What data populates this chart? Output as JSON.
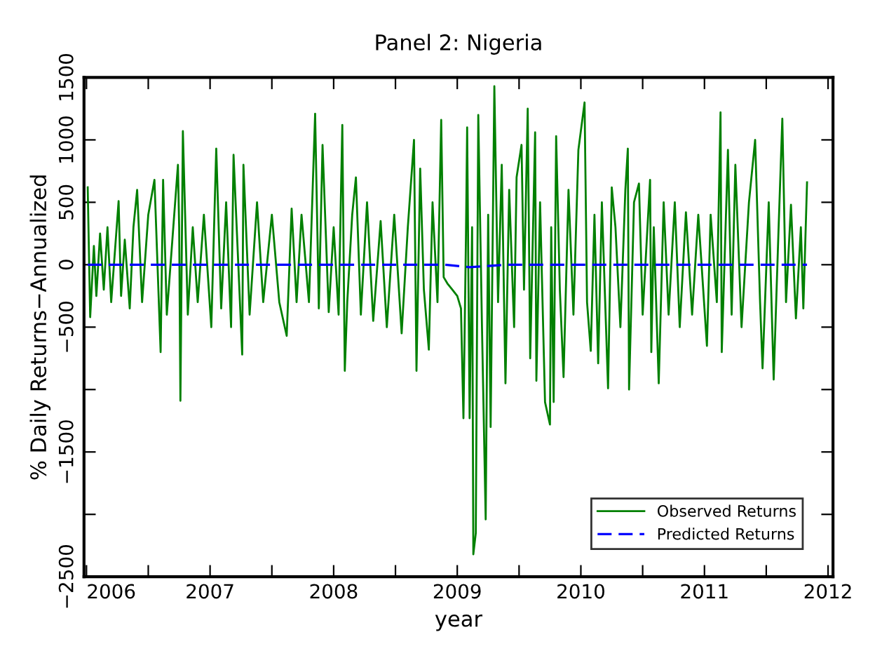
{
  "chart_data": {
    "type": "line",
    "title": "Panel 2: Nigeria",
    "xlabel": "year",
    "ylabel": "% Daily Returns−Annualized",
    "series": [
      {
        "name": "Observed Returns",
        "color": "#008000",
        "line_style": "solid",
        "x": [
          2006.01,
          2006.03,
          2006.06,
          2006.08,
          2006.11,
          2006.14,
          2006.17,
          2006.2,
          2006.26,
          2006.28,
          2006.31,
          2006.35,
          2006.38,
          2006.41,
          2006.45,
          2006.5,
          2006.55,
          2006.6,
          2006.62,
          2006.65,
          2006.74,
          2006.75,
          2006.76,
          2006.78,
          2006.82,
          2006.86,
          2006.9,
          2006.95,
          2007.01,
          2007.05,
          2007.09,
          2007.13,
          2007.17,
          2007.19,
          2007.26,
          2007.27,
          2007.32,
          2007.38,
          2007.43,
          2007.5,
          2007.56,
          2007.62,
          2007.66,
          2007.7,
          2007.74,
          2007.8,
          2007.85,
          2007.88,
          2007.91,
          2007.96,
          2008.0,
          2008.04,
          2008.07,
          2008.09,
          2008.11,
          2008.15,
          2008.18,
          2008.22,
          2008.27,
          2008.32,
          2008.38,
          2008.43,
          2008.49,
          2008.55,
          2008.6,
          2008.65,
          2008.67,
          2008.7,
          2008.73,
          2008.77,
          2008.8,
          2008.84,
          2008.87,
          2008.89,
          2008.92,
          2008.96,
          2009.0,
          2009.03,
          2009.05,
          2009.07,
          2009.08,
          2009.1,
          2009.12,
          2009.13,
          2009.15,
          2009.17,
          2009.2,
          2009.23,
          2009.25,
          2009.27,
          2009.3,
          2009.33,
          2009.36,
          2009.39,
          2009.42,
          2009.46,
          2009.48,
          2009.52,
          2009.54,
          2009.57,
          2009.59,
          2009.63,
          2009.64,
          2009.67,
          2009.71,
          2009.75,
          2009.76,
          2009.78,
          2009.8,
          2009.83,
          2009.86,
          2009.9,
          2009.94,
          2009.98,
          2010.03,
          2010.05,
          2010.08,
          2010.11,
          2010.14,
          2010.17,
          2010.22,
          2010.25,
          2010.28,
          2010.32,
          2010.36,
          2010.38,
          2010.39,
          2010.43,
          2010.47,
          2010.5,
          2010.56,
          2010.57,
          2010.59,
          2010.63,
          2010.67,
          2010.71,
          2010.76,
          2010.8,
          2010.85,
          2010.9,
          2010.95,
          2011.02,
          2011.05,
          2011.1,
          2011.13,
          2011.14,
          2011.19,
          2011.22,
          2011.25,
          2011.3,
          2011.36,
          2011.41,
          2011.45,
          2011.47,
          2011.52,
          2011.56,
          2011.6,
          2011.63,
          2011.66,
          2011.7,
          2011.74,
          2011.78,
          2011.8,
          2011.83
        ],
        "values": [
          620,
          -420,
          150,
          -250,
          250,
          -200,
          300,
          -300,
          510,
          -250,
          200,
          -350,
          300,
          600,
          -300,
          400,
          680,
          -700,
          680,
          -400,
          800,
          300,
          -1090,
          1070,
          -400,
          300,
          -300,
          400,
          -500,
          930,
          -350,
          500,
          -500,
          880,
          -720,
          800,
          -400,
          500,
          -300,
          400,
          -300,
          -570,
          450,
          -300,
          400,
          -300,
          1210,
          -350,
          960,
          -380,
          300,
          -400,
          1120,
          -850,
          -300,
          400,
          700,
          -400,
          500,
          -450,
          350,
          -500,
          400,
          -550,
          300,
          1000,
          -850,
          770,
          -200,
          -680,
          500,
          -300,
          1160,
          -100,
          -150,
          -200,
          -250,
          -350,
          -1230,
          200,
          1100,
          -1230,
          300,
          -2320,
          -2150,
          1200,
          -500,
          -2040,
          400,
          -1300,
          1430,
          -300,
          800,
          -950,
          600,
          -500,
          700,
          960,
          -200,
          1250,
          -750,
          1060,
          -930,
          500,
          -1100,
          -1280,
          300,
          -1100,
          1030,
          -200,
          -900,
          600,
          -400,
          920,
          1300,
          -300,
          -690,
          400,
          -790,
          500,
          -990,
          620,
          300,
          -500,
          600,
          930,
          -1000,
          500,
          650,
          -400,
          680,
          -700,
          300,
          -950,
          500,
          -400,
          500,
          -500,
          420,
          -400,
          400,
          -650,
          400,
          -300,
          1220,
          -700,
          920,
          -400,
          800,
          -500,
          500,
          1000,
          -300,
          -830,
          500,
          -920,
          300,
          1170,
          -300,
          480,
          -430,
          300,
          -350,
          660
        ]
      },
      {
        "name": "Predicted Returns",
        "color": "#0000ff",
        "line_style": "dashed",
        "x": [
          2006.01,
          2008.9,
          2009.1,
          2009.4,
          2011.83
        ],
        "values": [
          0,
          0,
          -20,
          0,
          0
        ]
      }
    ],
    "xlim": [
      2005.98,
      2012.04
    ],
    "xticks": [
      2006,
      {
        "value": 2006.5,
        "label": null
      },
      2007,
      {
        "value": 2007.5,
        "label": null
      },
      2008,
      {
        "value": 2008.5,
        "label": null
      },
      2009,
      {
        "value": 2009.5,
        "label": null
      },
      2010,
      {
        "value": 2010.5,
        "label": null
      },
      2011,
      {
        "value": 2011.5,
        "label": null
      },
      2012
    ],
    "ylim": [
      -2500,
      1500
    ],
    "yticks": [
      {
        "value": -2500,
        "label": "−2500"
      },
      {
        "value": -2000,
        "label": null
      },
      {
        "value": -1500,
        "label": "−1500"
      },
      {
        "value": -1000,
        "label": null
      },
      {
        "value": -500,
        "label": "−500"
      },
      0,
      500,
      1000,
      1500
    ],
    "grid": false,
    "legend": "bottom right"
  }
}
